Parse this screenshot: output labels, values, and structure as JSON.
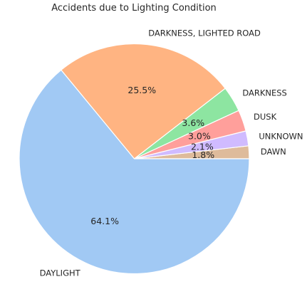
{
  "chart_data": {
    "type": "pie",
    "title": "Accidents due to Lighting Condition",
    "start_angle_deg": 0,
    "direction": "counterclockwise",
    "slices": [
      {
        "label": "DAWN",
        "value": 1.8,
        "pct_label": "1.8%",
        "color": "#debb9b"
      },
      {
        "label": "UNKNOWN",
        "value": 2.1,
        "pct_label": "2.1%",
        "color": "#d0bbff"
      },
      {
        "label": "DUSK",
        "value": 3.0,
        "pct_label": "3.0%",
        "color": "#ff9f9b"
      },
      {
        "label": "DARKNESS",
        "value": 3.6,
        "pct_label": "3.6%",
        "color": "#8de5a1"
      },
      {
        "label": "DARKNESS, LIGHTED ROAD",
        "value": 25.5,
        "pct_label": "25.5%",
        "color": "#ffb482"
      },
      {
        "label": "DAYLIGHT",
        "value": 64.1,
        "pct_label": "64.1%",
        "color": "#a1c9f4"
      }
    ]
  }
}
